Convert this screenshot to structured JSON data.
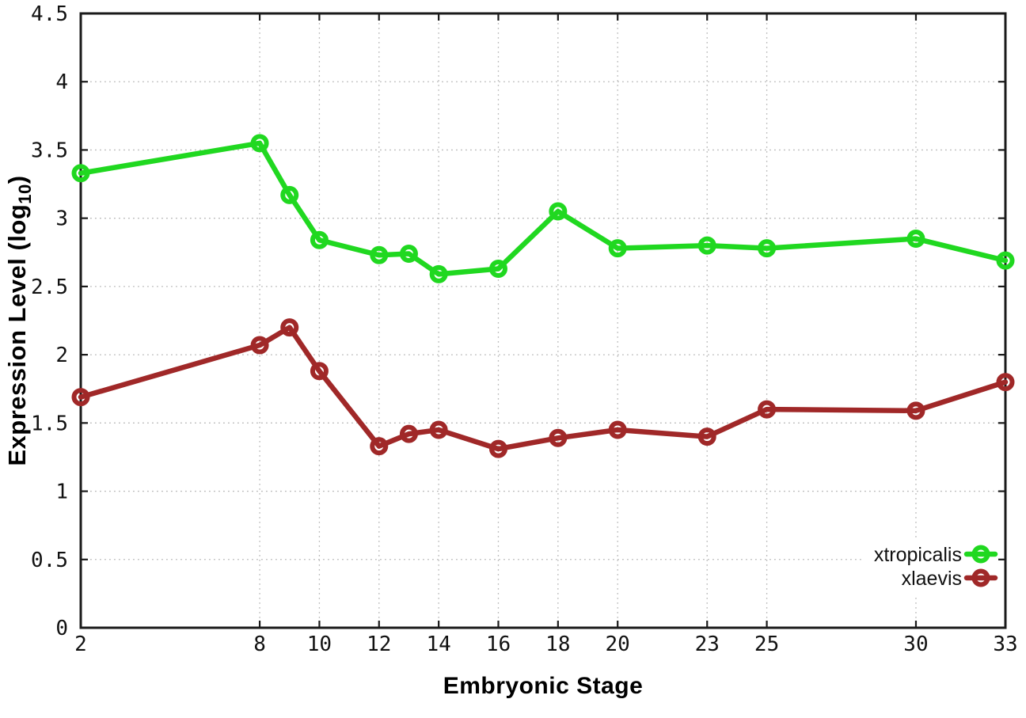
{
  "figure": {
    "background": "#ffffff",
    "border_color": "#1a1a1a",
    "grid_color": "#b8b8b8",
    "tick_color": "#1a1a1a",
    "text_color": "#111111"
  },
  "chart_data": {
    "type": "line",
    "title": "",
    "xlabel": "Embryonic Stage",
    "ylabel": "Expression Level (log10)",
    "ylabel_parts": {
      "main": "Expression Level (log",
      "sub": "10",
      "close": ")"
    },
    "xlim": [
      2,
      33
    ],
    "ylim": [
      0,
      4.5
    ],
    "x_ticks": [
      "2",
      "8",
      "10",
      "12",
      "14",
      "16",
      "18",
      "20",
      "23",
      "25",
      "30",
      "33"
    ],
    "y_ticks": [
      "0",
      "0.5",
      "1",
      "1.5",
      "2",
      "2.5",
      "3",
      "3.5",
      "4",
      "4.5"
    ],
    "grid": "dotted",
    "legend_position": "inside-bottom-right",
    "x": [
      2,
      8,
      9,
      10,
      12,
      13,
      14,
      16,
      18,
      20,
      23,
      25,
      30,
      33
    ],
    "series": [
      {
        "name": "xtropicalis",
        "color": "#20d820",
        "marker": "open-circle",
        "values": [
          3.33,
          3.55,
          3.17,
          2.84,
          2.73,
          2.74,
          2.59,
          2.63,
          3.05,
          2.78,
          2.8,
          2.78,
          2.85,
          2.69
        ]
      },
      {
        "name": "xlaevis",
        "color": "#a02828",
        "marker": "open-circle",
        "values": [
          1.69,
          2.07,
          2.2,
          1.88,
          1.33,
          1.42,
          1.45,
          1.31,
          1.39,
          1.45,
          1.4,
          1.6,
          1.59,
          1.8
        ]
      }
    ]
  }
}
